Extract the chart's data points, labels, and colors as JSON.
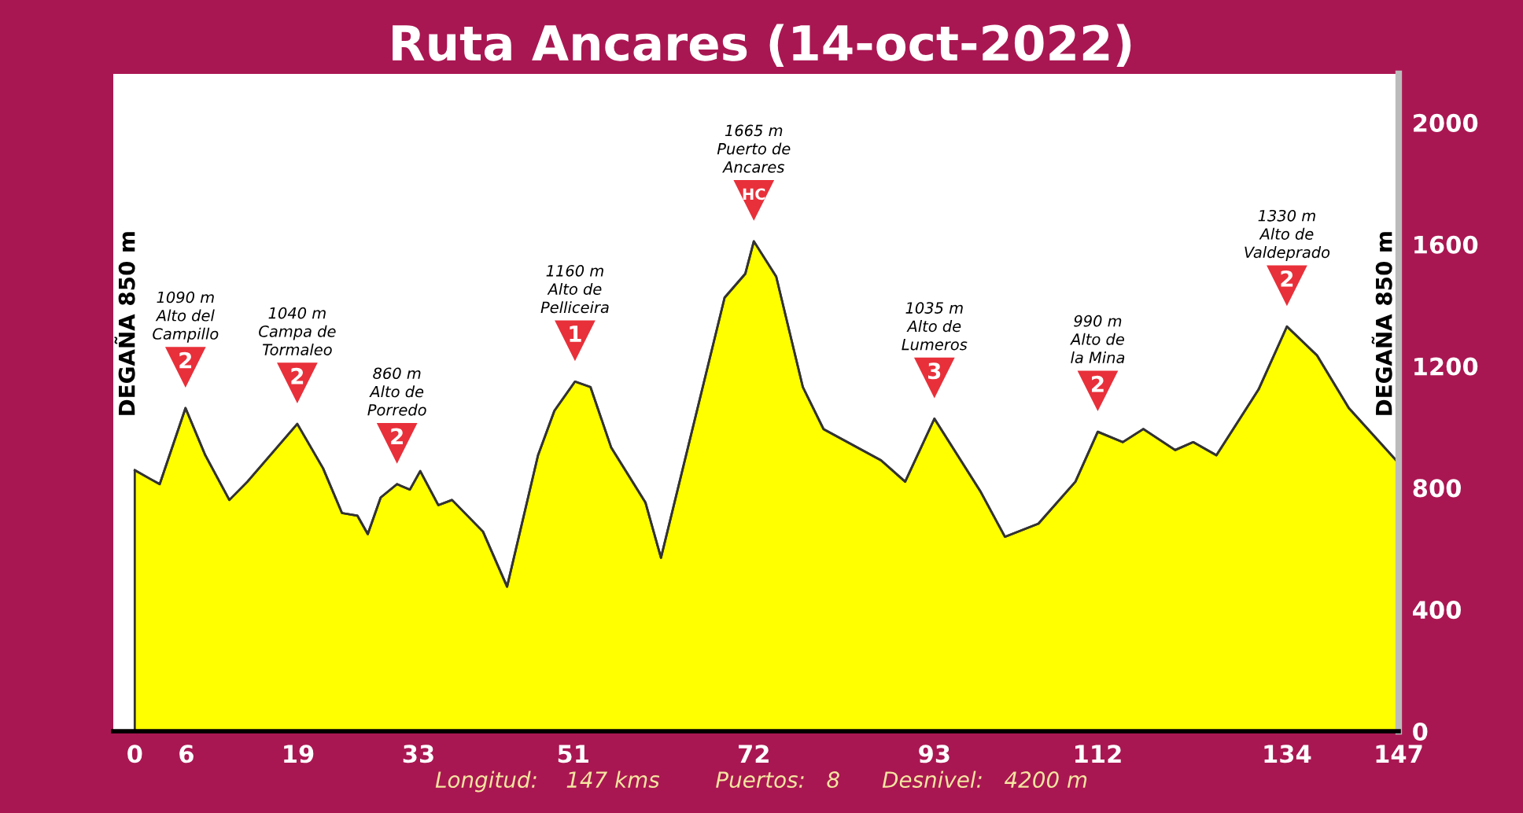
{
  "chart_data": {
    "type": "area",
    "title": "Ruta Ancares (14-oct-2022)",
    "x": [
      0,
      1.8,
      2.9,
      5.9,
      8.2,
      11,
      13.1,
      18.9,
      21.9,
      24.1,
      25.9,
      27.1,
      28.6,
      30.5,
      32,
      33.2,
      35.3,
      36.9,
      40.5,
      43.3,
      46.9,
      48.8,
      51.2,
      53,
      55.4,
      59.4,
      61.2,
      68.6,
      71,
      72,
      74.6,
      77.7,
      80.1,
      86.8,
      89.6,
      93,
      98.4,
      101.2,
      105.1,
      109.4,
      112,
      114.9,
      117.3,
      121,
      123.1,
      125.8,
      130.7,
      134,
      137.5,
      141.2,
      147
    ],
    "series": [
      {
        "color": "#ffff00",
        "values": [
          858,
          829,
          812,
          1062,
          907,
          760,
          820,
          1010,
          864,
          717,
          708,
          648,
          768,
          812,
          794,
          855,
          743,
          760,
          656,
          475,
          907,
          1053,
          1149,
          1131,
          933,
          751,
          570,
          1425,
          1503,
          1610,
          1494,
          1131,
          993,
          890,
          820,
          1027,
          786,
          639,
          682,
          820,
          984,
          950,
          993,
          924,
          950,
          907,
          1123,
          1330,
          1235,
          1062,
          881
        ]
      }
    ],
    "xlim": [
      -2.5,
      147
    ],
    "ylim": [
      0,
      2160
    ],
    "xticks": [
      0,
      6,
      19,
      33,
      51,
      72,
      93,
      112,
      134,
      147
    ],
    "yticks": [
      0,
      400,
      800,
      1200,
      1600,
      2000
    ],
    "grid": false,
    "legend": false,
    "annotations": [
      "1090 m\nAlto del\nCampillo",
      {
        "text": "2",
        "x": 5.9,
        "y": 1062
      },
      "1040 m\nCampa de\nTormaleo",
      {
        "text": "2",
        "x": 18.9,
        "y": 1010
      },
      "860 m\nAlto de\nPorredo",
      {
        "text": "2",
        "x": 30.5,
        "y": 812
      },
      "1160 m\nAlto de\nPelliceira",
      {
        "text": "1",
        "x": 51.2,
        "y": 1149
      },
      "1665 m\nPuerto de\nAncares",
      {
        "text": "HC",
        "x": 72,
        "y": 1610
      },
      "1035 m\nAlto de\nLumeros",
      {
        "text": "3",
        "x": 93,
        "y": 1027
      },
      "990 m\nAlto de\nla Mina",
      {
        "text": "2",
        "x": 112,
        "y": 984
      },
      "1330 m\nAlto de\nValdeprado",
      {
        "text": "2",
        "x": 134,
        "y": 1330
      },
      "DEGAÑA 850 m",
      "DEGAÑA 850 m",
      "Longitud:    147 kms        Puertos:   8      Desnivel:   4200 m"
    ]
  }
}
